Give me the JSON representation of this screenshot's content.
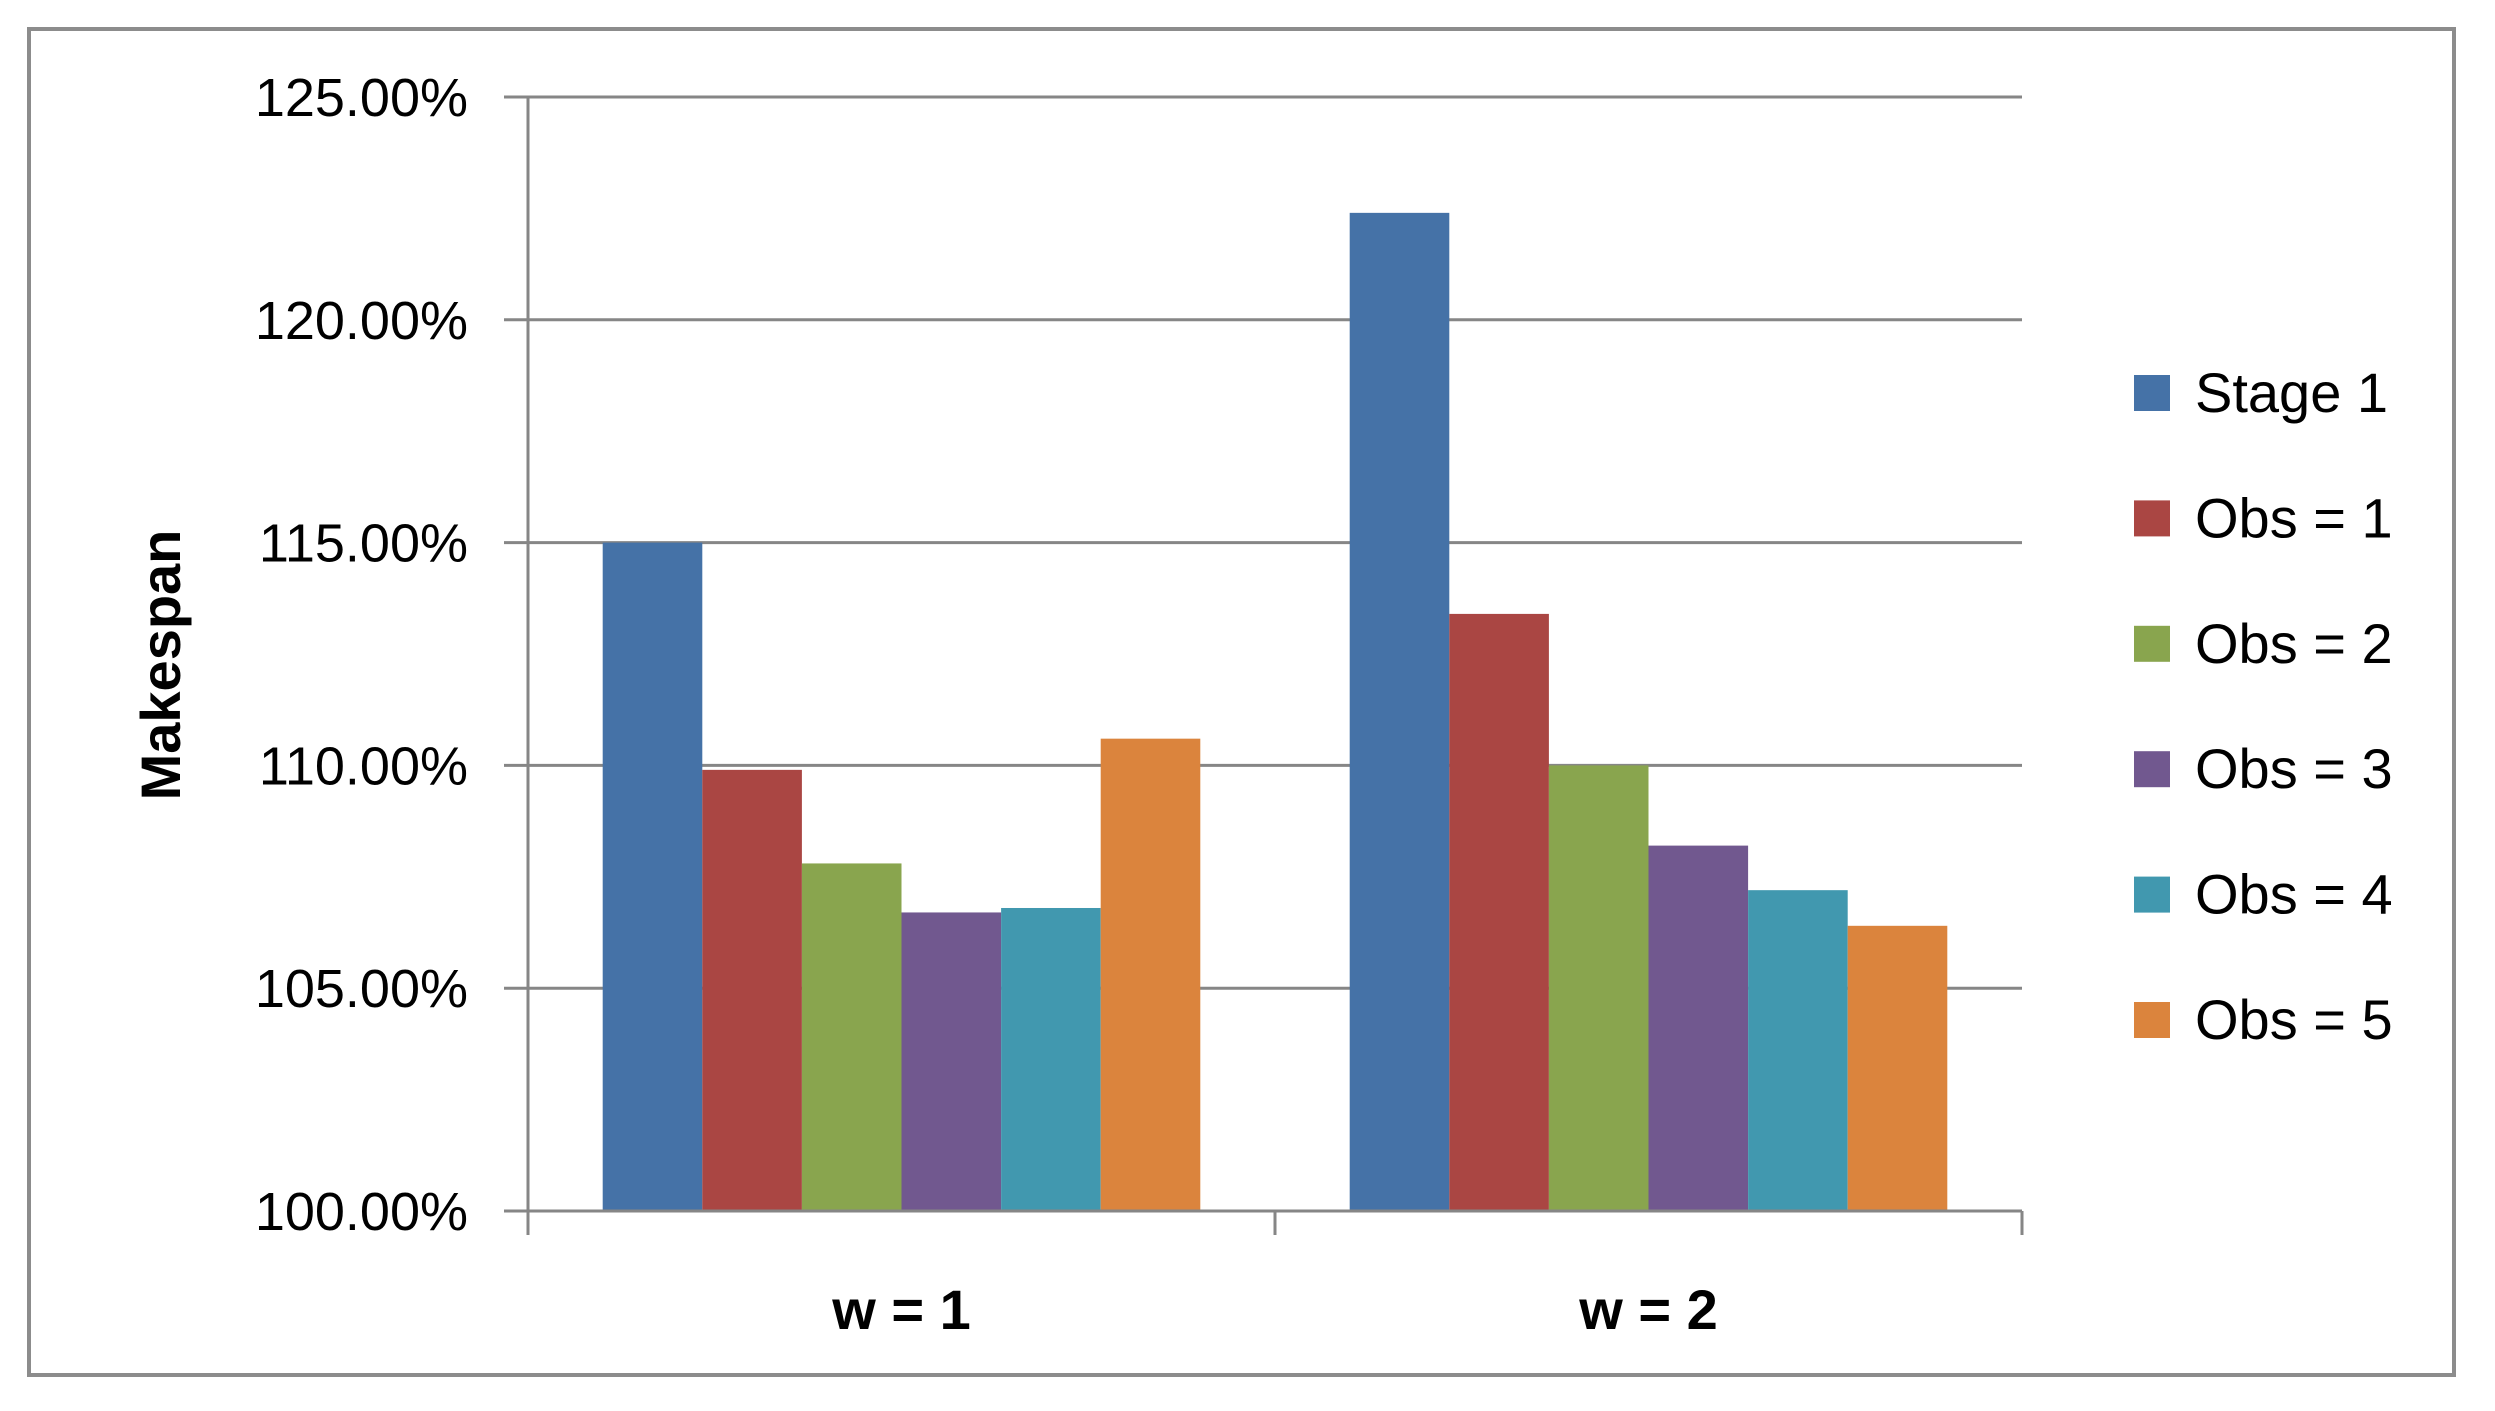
{
  "chart_data": {
    "type": "bar",
    "title": "",
    "xlabel": "",
    "ylabel": "Makespan",
    "ylim": [
      100,
      125
    ],
    "yticks": [
      "100.00%",
      "105.00%",
      "110.00%",
      "115.00%",
      "120.00%",
      "125.00%"
    ],
    "categories": [
      "w = 1",
      "w = 2"
    ],
    "grid": true,
    "legend_position": "right",
    "series": [
      {
        "name": "Stage 1",
        "color": "#4572A7",
        "values": [
          115.0,
          122.4
        ]
      },
      {
        "name": "Obs = 1",
        "color": "#AA4643",
        "values": [
          109.9,
          113.4
        ]
      },
      {
        "name": "Obs = 2",
        "color": "#89A54E",
        "values": [
          107.8,
          110.0
        ]
      },
      {
        "name": "Obs = 3",
        "color": "#71588F",
        "values": [
          106.7,
          108.2
        ]
      },
      {
        "name": "Obs = 4",
        "color": "#4198AF",
        "values": [
          106.8,
          107.2
        ]
      },
      {
        "name": "Obs = 5",
        "color": "#DB843D",
        "values": [
          110.6,
          106.4
        ]
      }
    ]
  }
}
